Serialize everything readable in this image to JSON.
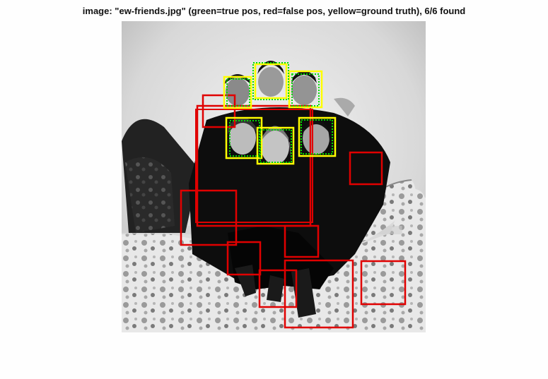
{
  "figure": {
    "title": "image: \"ew-friends.jpg\" (green=true pos, red=false pos, yellow=ground truth), 6/6 found"
  },
  "colors": {
    "true_positive": "#00dd00",
    "false_positive": "#e00000",
    "ground_truth": "#ffff00"
  },
  "detections": {
    "ground_truth_count": 6,
    "true_positive_count": 6,
    "false_positive_count": 11
  }
}
